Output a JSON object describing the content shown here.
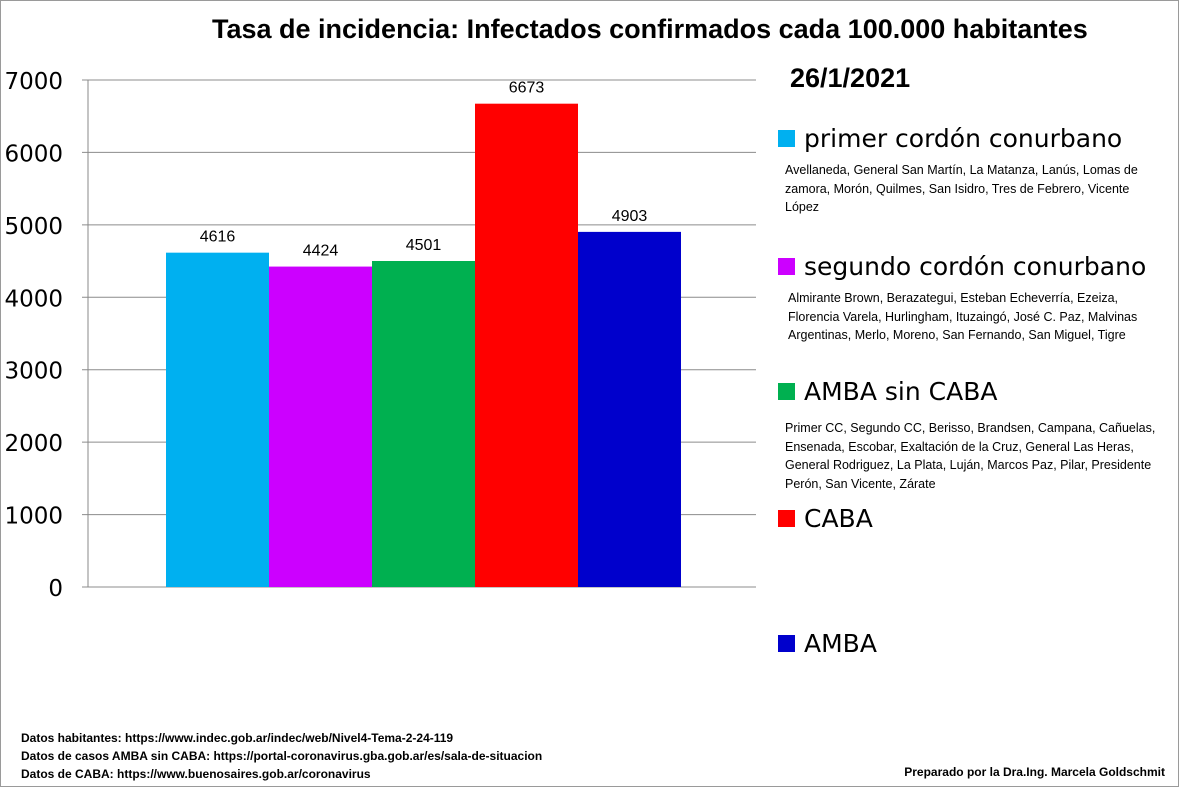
{
  "title": "Tasa de incidencia: Infectados confirmados cada 100.000 habitantes",
  "date": "26/1/2021",
  "chart_data": {
    "type": "bar",
    "categories": [
      "primer cordón conurbano",
      "segundo cordón conurbano",
      "AMBA sin CABA",
      "CABA",
      "AMBA"
    ],
    "values": [
      4616,
      4424,
      4501,
      6673,
      4903
    ],
    "colors": [
      "#00b0f0",
      "#cc00ff",
      "#00b050",
      "#ff0000",
      "#0000cc"
    ],
    "ylim": [
      0,
      7000
    ],
    "yticks": [
      0,
      1000,
      2000,
      3000,
      4000,
      5000,
      6000,
      7000
    ],
    "grid": true,
    "legend_position": "right"
  },
  "legend": [
    {
      "label": "primer cordón conurbano",
      "color": "#00b0f0",
      "detail": "Avellaneda, General San Martín, La Matanza, Lanús, Lomas de zamora, Morón, Quilmes, San Isidro, Tres de Febrero, Vicente López"
    },
    {
      "label": "segundo cordón conurbano",
      "color": "#cc00ff",
      "detail": "Almirante Brown, Berazategui, Esteban Echeverría, Ezeiza, Florencia Varela, Hurlingham, Ituzaingó, José C. Paz, Malvinas Argentinas, Merlo, Moreno, San Fernando, San Miguel, Tigre"
    },
    {
      "label": "AMBA sin CABA",
      "color": "#00b050",
      "detail": "Primer CC, Segundo CC, Berisso, Brandsen, Campana, Cañuelas, Ensenada, Escobar, Exaltación de la Cruz, General Las Heras, General Rodriguez, La Plata, Luján, Marcos Paz, Pilar, Presidente Perón, San Vicente, Zárate"
    },
    {
      "label": "CABA",
      "color": "#ff0000",
      "detail": ""
    },
    {
      "label": "AMBA",
      "color": "#0000cc",
      "detail": ""
    }
  ],
  "sources": [
    "Datos habitantes: https://www.indec.gob.ar/indec/web/Nivel4-Tema-2-24-119",
    "Datos de casos AMBA sin CABA: https://portal-coronavirus.gba.gob.ar/es/sala-de-situacion",
    "Datos de CABA: https://www.buenosaires.gob.ar/coronavirus"
  ],
  "author": "Preparado por la Dra.Ing. Marcela Goldschmit"
}
